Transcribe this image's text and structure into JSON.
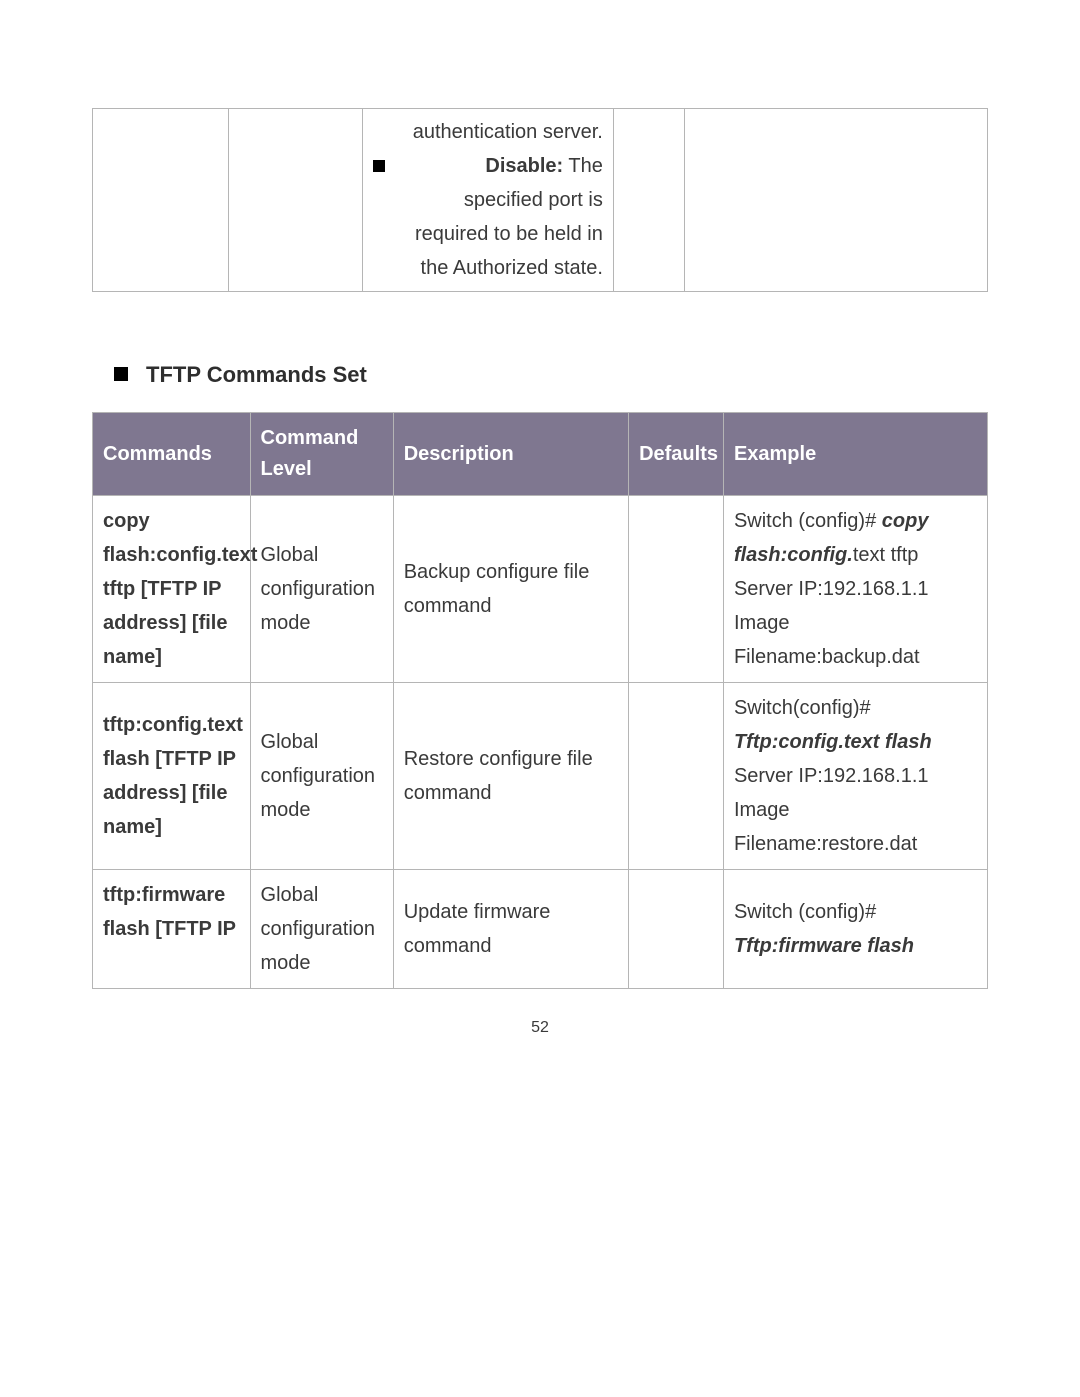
{
  "fragmentTable": {
    "row": {
      "line1": "authentication server.",
      "bulletBold": "Disable:",
      "bulletRest": " The",
      "line3": "specified port is",
      "line4": "required to be held in",
      "line5": "the Authorized state."
    }
  },
  "section": {
    "heading": "TFTP Commands Set"
  },
  "tableHeader": {
    "commands": "Commands",
    "level": "Command Level",
    "description": "Description",
    "defaults": "Defaults",
    "example": "Example"
  },
  "rows": [
    {
      "command": "copy flash:config.text tftp [TFTP IP address] [file name]",
      "level": "Global configuration mode",
      "description": "Backup configure file command",
      "defaults": "",
      "example": {
        "parts": [
          {
            "t": "Switch (config)# "
          },
          {
            "t": "copy flash:config.",
            "cls": "bi"
          },
          {
            "t": "text tftp"
          },
          {
            "br": true
          },
          {
            "t": "Server IP:192.168.1.1"
          },
          {
            "br": true
          },
          {
            "t": "Image Filename:backup.dat"
          }
        ]
      }
    },
    {
      "command": "tftp:config.text flash\n[TFTP IP address] [file name]",
      "level": "Global configuration mode",
      "description": "Restore configure file command",
      "defaults": "",
      "example": {
        "parts": [
          {
            "t": "Switch(config)# "
          },
          {
            "t": "Tftp:config.text flash",
            "cls": "bi"
          },
          {
            "br": true
          },
          {
            "t": "Server IP:192.168.1.1"
          },
          {
            "br": true
          },
          {
            "t": "Image Filename:restore.dat"
          }
        ]
      }
    },
    {
      "command": "tftp:firmware flash\n[TFTP IP",
      "level": "Global configuration mode",
      "description": "Update firmware command",
      "defaults": "",
      "example": {
        "parts": [
          {
            "t": "Switch (config)# "
          },
          {
            "t": "Tftp:firmware flash",
            "cls": "bi"
          }
        ]
      },
      "truncated": true
    }
  ],
  "pageNumber": "52",
  "colors": {
    "headerBg": "#7f7790",
    "headerFg": "#ffffff",
    "border": "#b5b5b5",
    "text": "#3a3a3a"
  },
  "typography": {
    "bodyFontSize": 20,
    "headingFontSize": 22,
    "pageNumFontSize": 16
  }
}
